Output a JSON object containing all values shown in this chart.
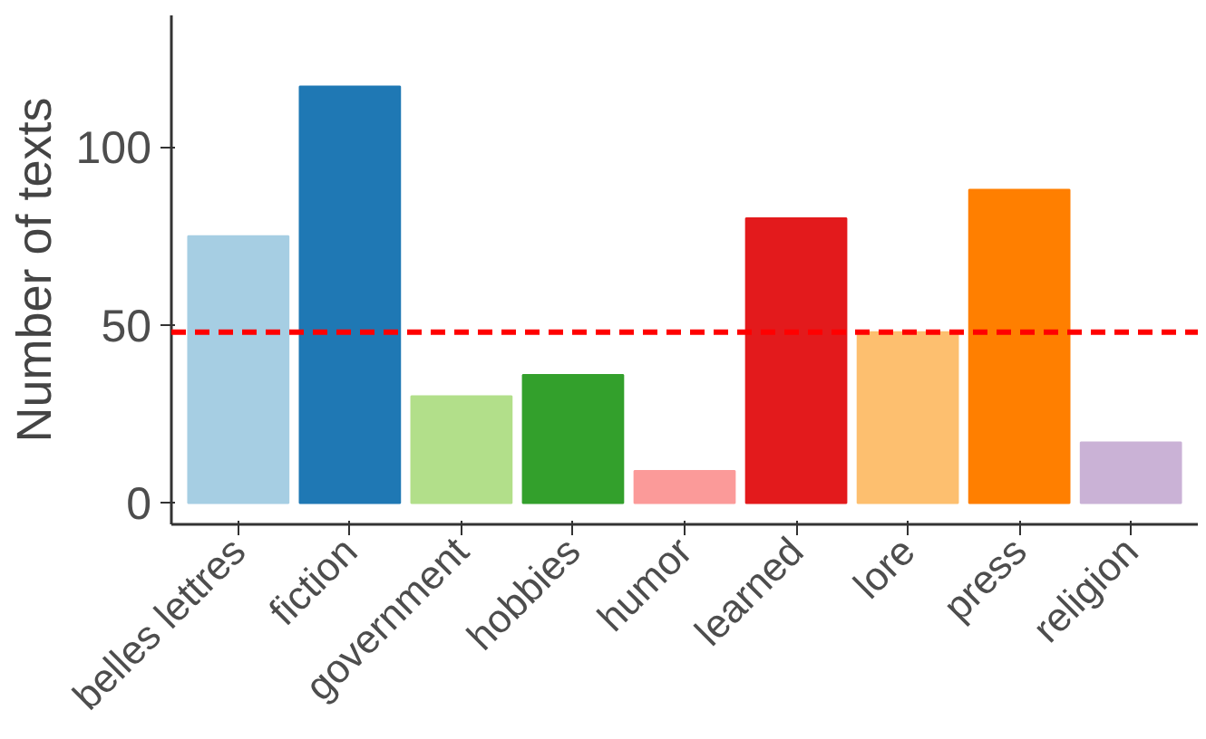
{
  "chart_data": {
    "type": "bar",
    "ylabel": "Number of texts",
    "categories": [
      "belles lettres",
      "fiction",
      "government",
      "hobbies",
      "humor",
      "learned",
      "lore",
      "press",
      "religion"
    ],
    "values": [
      75,
      117,
      30,
      36,
      9,
      80,
      48,
      88,
      17
    ],
    "colors": [
      "#a6cee3",
      "#1f78b4",
      "#b2df8a",
      "#33a02c",
      "#fb9a99",
      "#e31a1c",
      "#fdbf6f",
      "#ff7f00",
      "#cab2d6"
    ],
    "ylim": [
      -6,
      137
    ],
    "yticks": [
      0,
      50,
      100
    ],
    "grid": false,
    "ref_lines": [
      {
        "axis": "y",
        "value": 48,
        "color": "#ff0000",
        "line_style": "dashed"
      }
    ]
  }
}
